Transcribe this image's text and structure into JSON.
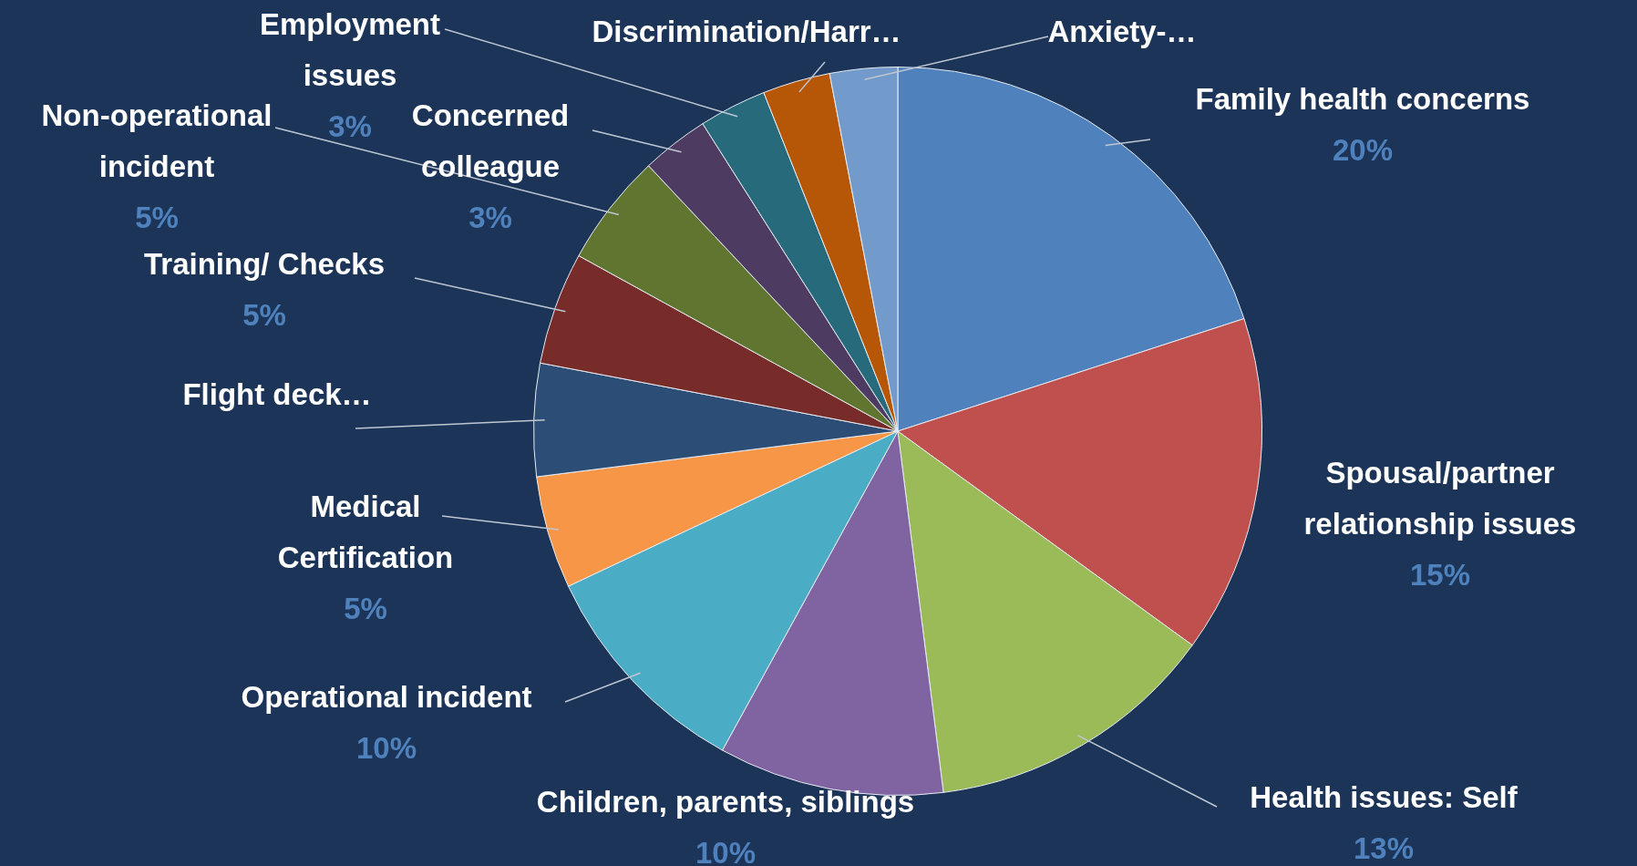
{
  "chart_data": {
    "type": "pie",
    "categories": [
      "Family health concerns",
      "Spousal/partner relationship issues",
      "Health issues: Self",
      "Children, parents, siblings",
      "Operational incident",
      "Medical Certification",
      "Flight deck…",
      "Training/ Checks",
      "Non-operational incident",
      "Concerned colleague",
      "Employment issues",
      "Discrimination/Harr…",
      "Anxiety-…"
    ],
    "values": [
      20,
      15,
      13,
      10,
      10,
      5,
      5,
      5,
      5,
      3,
      3,
      3,
      3
    ],
    "colors": [
      "#4f81bd",
      "#c0504d",
      "#9bbb59",
      "#8064a2",
      "#4bacc6",
      "#f79646",
      "#2c4d75",
      "#772c2a",
      "#5f7530",
      "#4d3b62",
      "#276a7c",
      "#b65708",
      "#729aca"
    ],
    "value_labels": [
      "20%",
      "15%",
      "13%",
      "10%",
      "10%",
      "5%",
      null,
      "5%",
      "5%",
      "3%",
      "3%",
      null,
      null
    ],
    "legend": false
  }
}
